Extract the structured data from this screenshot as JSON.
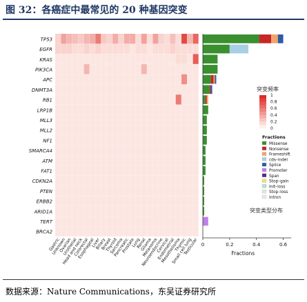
{
  "title": "图 32：各癌症中最常见的 20 种基因突变",
  "source": "数据来源：Nature Communications，东吴证券研究所",
  "chart_data": [
    {
      "type": "heatmap",
      "genes": [
        "TP53",
        "EGFR",
        "KRAS",
        "PIK3CA",
        "APC",
        "DNMT3A",
        "RB1",
        "LRP1B",
        "MLL3",
        "MLL2",
        "NF1",
        "SMARCA4",
        "ATM",
        "FAT1",
        "CDKN2A",
        "PTEN",
        "ERBB2",
        "ARID1A",
        "TERT",
        "BRCA2"
      ],
      "cancers": [
        "Gastric",
        "Unknown",
        "Ovarian",
        "Urothelial",
        "Head and neck",
        "Colorectal",
        "Esophageal",
        "Liver",
        "Biliary",
        "Breast",
        "Thyroid",
        "Sarcoma",
        "Pancreatic",
        "Prostate",
        "Lung",
        "Renal",
        "Glioma",
        "Melanoma",
        "Neuroendocrine",
        "Cervical",
        "Endometrial",
        "Mesothelioma",
        "Thymic",
        "Small cell lung",
        "Testicular"
      ],
      "legend_title": "突变频率",
      "colorbar_ticks": [
        "1",
        "0.8",
        "0.6",
        "0.4",
        "0.2",
        "0"
      ],
      "values": [
        [
          0.15,
          0.4,
          0.3,
          0.25,
          0.2,
          0.3,
          0.35,
          0.6,
          0.2,
          0.15,
          0.35,
          0.15,
          0.35,
          0.35,
          0.1,
          0.4,
          0.1,
          0.4,
          0.15,
          0.1,
          0.25,
          0.1,
          0.85,
          0.3,
          0.7
        ],
        [
          0.15,
          0.15,
          0.15,
          0.1,
          0.1,
          0.15,
          0.1,
          0.15,
          0.1,
          0.1,
          0.1,
          0.1,
          0.1,
          0.05,
          0.1,
          0.1,
          0.05,
          0.1,
          0.1,
          0.1,
          0.15,
          0.1,
          0.1,
          0.1,
          0.1
        ],
        [
          0.05,
          0.05,
          0.05,
          0.05,
          0.05,
          0.05,
          0.05,
          0.05,
          0.05,
          0.05,
          0.05,
          0.05,
          0.05,
          0.05,
          0.05,
          0.05,
          0.05,
          0.05,
          0.05,
          0.05,
          0.05,
          0.1,
          0.1,
          0.05,
          0.75
        ],
        [
          0.05,
          0.05,
          0.05,
          0.05,
          0.05,
          0.3,
          0.05,
          0.05,
          0.05,
          0.05,
          0.05,
          0.05,
          0.05,
          0.05,
          0.05,
          0.3,
          0.05,
          0.05,
          0.05,
          0.05,
          0.05,
          0.05,
          0.05,
          0.05,
          0.05
        ],
        [
          0.05,
          0.05,
          0.05,
          0.05,
          0.05,
          0.05,
          0.05,
          0.05,
          0.05,
          0.05,
          0.05,
          0.05,
          0.05,
          0.05,
          0.05,
          0.05,
          0.05,
          0.05,
          0.05,
          0.05,
          0.05,
          0.05,
          0.5,
          0.05,
          0.05
        ],
        [
          0.05,
          0.05,
          0.05,
          0.05,
          0.05,
          0.05,
          0.05,
          0.05,
          0.05,
          0.05,
          0.05,
          0.05,
          0.05,
          0.05,
          0.05,
          0.05,
          0.05,
          0.05,
          0.05,
          0.05,
          0.05,
          0.05,
          0.05,
          0.05,
          0.05
        ],
        [
          0.05,
          0.05,
          0.05,
          0.05,
          0.05,
          0.05,
          0.05,
          0.05,
          0.05,
          0.05,
          0.05,
          0.05,
          0.05,
          0.05,
          0.05,
          0.05,
          0.05,
          0.05,
          0.05,
          0.05,
          0.05,
          0.6,
          0.05,
          0.05,
          0.05
        ],
        [
          0.05,
          0.05,
          0.05,
          0.05,
          0.05,
          0.05,
          0.05,
          0.05,
          0.05,
          0.05,
          0.05,
          0.05,
          0.05,
          0.05,
          0.05,
          0.05,
          0.05,
          0.05,
          0.05,
          0.05,
          0.05,
          0.05,
          0.05,
          0.05,
          0.05
        ],
        [
          0.05,
          0.05,
          0.05,
          0.05,
          0.05,
          0.05,
          0.05,
          0.05,
          0.05,
          0.05,
          0.05,
          0.05,
          0.05,
          0.05,
          0.05,
          0.05,
          0.05,
          0.05,
          0.05,
          0.05,
          0.05,
          0.05,
          0.05,
          0.05,
          0.05
        ],
        [
          0.05,
          0.05,
          0.05,
          0.05,
          0.05,
          0.05,
          0.05,
          0.05,
          0.05,
          0.05,
          0.05,
          0.05,
          0.05,
          0.05,
          0.05,
          0.05,
          0.05,
          0.05,
          0.05,
          0.05,
          0.05,
          0.05,
          0.05,
          0.05,
          0.05
        ],
        [
          0.05,
          0.05,
          0.05,
          0.05,
          0.05,
          0.05,
          0.05,
          0.05,
          0.05,
          0.05,
          0.05,
          0.05,
          0.05,
          0.05,
          0.05,
          0.05,
          0.05,
          0.05,
          0.05,
          0.05,
          0.05,
          0.05,
          0.05,
          0.05,
          0.05
        ],
        [
          0.05,
          0.05,
          0.05,
          0.05,
          0.05,
          0.05,
          0.05,
          0.05,
          0.05,
          0.05,
          0.05,
          0.05,
          0.05,
          0.05,
          0.05,
          0.05,
          0.05,
          0.05,
          0.05,
          0.05,
          0.05,
          0.05,
          0.05,
          0.05,
          0.05
        ],
        [
          0.05,
          0.05,
          0.05,
          0.05,
          0.05,
          0.05,
          0.05,
          0.05,
          0.05,
          0.05,
          0.05,
          0.05,
          0.05,
          0.05,
          0.05,
          0.05,
          0.05,
          0.05,
          0.05,
          0.05,
          0.05,
          0.05,
          0.05,
          0.05,
          0.05
        ],
        [
          0.05,
          0.05,
          0.05,
          0.05,
          0.05,
          0.05,
          0.05,
          0.05,
          0.05,
          0.05,
          0.05,
          0.05,
          0.05,
          0.05,
          0.05,
          0.05,
          0.05,
          0.05,
          0.05,
          0.05,
          0.05,
          0.05,
          0.05,
          0.05,
          0.05
        ],
        [
          0.05,
          0.05,
          0.05,
          0.05,
          0.05,
          0.05,
          0.05,
          0.05,
          0.05,
          0.05,
          0.05,
          0.05,
          0.05,
          0.05,
          0.05,
          0.05,
          0.05,
          0.05,
          0.05,
          0.05,
          0.05,
          0.05,
          0.05,
          0.05,
          0.05
        ],
        [
          0.05,
          0.05,
          0.05,
          0.05,
          0.05,
          0.05,
          0.05,
          0.05,
          0.05,
          0.05,
          0.05,
          0.05,
          0.05,
          0.05,
          0.05,
          0.05,
          0.05,
          0.05,
          0.05,
          0.05,
          0.05,
          0.05,
          0.05,
          0.05,
          0.05
        ],
        [
          0.05,
          0.05,
          0.05,
          0.05,
          0.05,
          0.05,
          0.05,
          0.05,
          0.05,
          0.05,
          0.05,
          0.05,
          0.05,
          0.05,
          0.05,
          0.05,
          0.05,
          0.05,
          0.05,
          0.05,
          0.05,
          0.05,
          0.05,
          0.05,
          0.05
        ],
        [
          0.05,
          0.05,
          0.05,
          0.05,
          0.05,
          0.05,
          0.05,
          0.05,
          0.05,
          0.05,
          0.05,
          0.05,
          0.05,
          0.05,
          0.05,
          0.05,
          0.05,
          0.05,
          0.05,
          0.05,
          0.05,
          0.05,
          0.05,
          0.05,
          0.05
        ],
        [
          0.05,
          0.05,
          0.05,
          0.05,
          0.05,
          0.05,
          0.05,
          0.05,
          0.05,
          0.05,
          0.05,
          0.05,
          0.05,
          0.05,
          0.05,
          0.05,
          0.05,
          0.05,
          0.05,
          0.05,
          0.05,
          0.05,
          0.05,
          0.05,
          0.05
        ],
        [
          0.05,
          0.05,
          0.05,
          0.05,
          0.05,
          0.05,
          0.05,
          0.05,
          0.05,
          0.05,
          0.05,
          0.05,
          0.05,
          0.05,
          0.05,
          0.05,
          0.05,
          0.05,
          0.05,
          0.05,
          0.05,
          0.05,
          0.05,
          0.05,
          0.05
        ]
      ]
    },
    {
      "type": "bar",
      "orientation": "horizontal",
      "stacked": true,
      "categories": [
        "TP53",
        "EGFR",
        "KRAS",
        "PIK3CA",
        "APC",
        "DNMT3A",
        "RB1",
        "LRP1B",
        "MLL3",
        "MLL2",
        "NF1",
        "SMARCA4",
        "ATM",
        "FAT1",
        "CDKN2A",
        "PTEN",
        "ERBB2",
        "ARID1A",
        "TERT",
        "BRCA2"
      ],
      "xlabel": "Fractions",
      "xlim": [
        0,
        0.7
      ],
      "xticks": [
        "0",
        "0.2",
        "0.4",
        "0.6"
      ],
      "legend_title": "Fractions",
      "legend_caption": "突变类型分布",
      "series": [
        {
          "name": "Missense",
          "color": "#3a8f2f",
          "values": [
            0.42,
            0.2,
            0.11,
            0.11,
            0.06,
            0.05,
            0.02,
            0.04,
            0.03,
            0.03,
            0.03,
            0.02,
            0.02,
            0.02,
            0.01,
            0.01,
            0.01,
            0.01,
            0.0,
            0.0
          ]
        },
        {
          "name": "Nonsense",
          "color": "#c62828",
          "values": [
            0.09,
            0.0,
            0.0,
            0.0,
            0.02,
            0.01,
            0.01,
            0.0,
            0.0,
            0.0,
            0.0,
            0.0,
            0.0,
            0.0,
            0.0,
            0.0,
            0.0,
            0.0,
            0.0,
            0.0
          ]
        },
        {
          "name": "Frameshift",
          "color": "#f2a36c",
          "values": [
            0.05,
            0.0,
            0.0,
            0.0,
            0.01,
            0.0,
            0.01,
            0.0,
            0.0,
            0.0,
            0.0,
            0.0,
            0.0,
            0.0,
            0.0,
            0.0,
            0.0,
            0.0,
            0.0,
            0.0
          ]
        },
        {
          "name": "cds–indel",
          "color": "#a8cfe4",
          "values": [
            0.0,
            0.14,
            0.0,
            0.0,
            0.0,
            0.0,
            0.0,
            0.0,
            0.0,
            0.0,
            0.0,
            0.0,
            0.0,
            0.0,
            0.0,
            0.0,
            0.0,
            0.0,
            0.0,
            0.0
          ]
        },
        {
          "name": "Splice",
          "color": "#2e5aa6",
          "values": [
            0.04,
            0.0,
            0.0,
            0.0,
            0.01,
            0.01,
            0.0,
            0.0,
            0.0,
            0.0,
            0.0,
            0.0,
            0.0,
            0.0,
            0.0,
            0.0,
            0.0,
            0.0,
            0.0,
            0.0
          ]
        },
        {
          "name": "Promoter",
          "color": "#c080e8",
          "values": [
            0.0,
            0.0,
            0.0,
            0.0,
            0.0,
            0.0,
            0.0,
            0.0,
            0.0,
            0.0,
            0.0,
            0.0,
            0.0,
            0.0,
            0.0,
            0.0,
            0.0,
            0.0,
            0.04,
            0.0
          ]
        },
        {
          "name": "Span",
          "color": "#5b2a86",
          "values": [
            0.0,
            0.0,
            0.0,
            0.0,
            0.0,
            0.0,
            0.0,
            0.0,
            0.0,
            0.0,
            0.0,
            0.0,
            0.0,
            0.0,
            0.0,
            0.0,
            0.0,
            0.0,
            0.0,
            0.0
          ]
        },
        {
          "name": "Stop–gain",
          "color": "#f1e079",
          "values": [
            0.0,
            0.0,
            0.0,
            0.0,
            0.0,
            0.0,
            0.0,
            0.0,
            0.0,
            0.0,
            0.0,
            0.0,
            0.0,
            0.0,
            0.0,
            0.0,
            0.0,
            0.0,
            0.0,
            0.0
          ]
        },
        {
          "name": "Init–loss",
          "color": "#b2dfd9",
          "values": [
            0.0,
            0.0,
            0.0,
            0.0,
            0.0,
            0.0,
            0.0,
            0.0,
            0.0,
            0.0,
            0.0,
            0.0,
            0.0,
            0.0,
            0.0,
            0.0,
            0.0,
            0.0,
            0.0,
            0.0
          ]
        },
        {
          "name": "Stop–loss",
          "color": "#d8ecd8",
          "values": [
            0.0,
            0.0,
            0.0,
            0.0,
            0.0,
            0.0,
            0.0,
            0.0,
            0.0,
            0.0,
            0.0,
            0.0,
            0.0,
            0.0,
            0.0,
            0.0,
            0.0,
            0.0,
            0.0,
            0.0
          ]
        },
        {
          "name": "Intron",
          "color": "#e8e8e8",
          "values": [
            0.0,
            0.0,
            0.0,
            0.0,
            0.0,
            0.0,
            0.0,
            0.0,
            0.0,
            0.0,
            0.0,
            0.0,
            0.0,
            0.0,
            0.0,
            0.0,
            0.0,
            0.0,
            0.0,
            0.0
          ]
        }
      ]
    }
  ]
}
